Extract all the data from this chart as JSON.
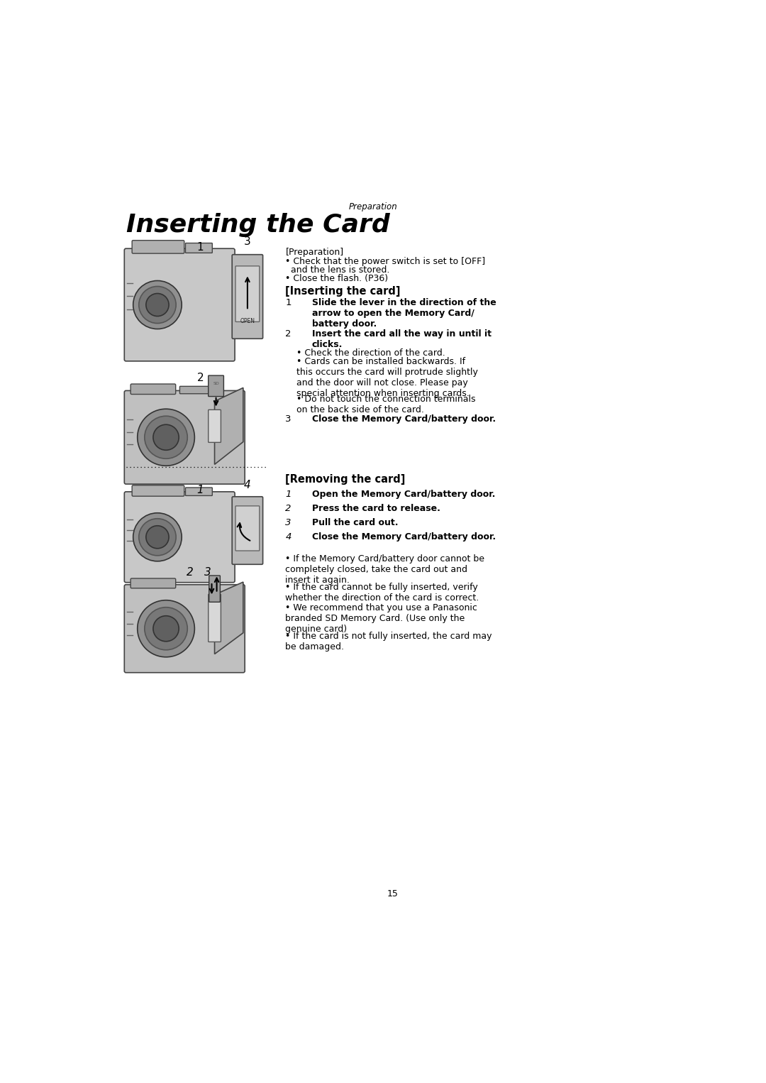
{
  "page_bg": "#ffffff",
  "page_number": "15",
  "section_label": "Preparation",
  "title": "Inserting the Card",
  "prep_header": "[Preparation]",
  "prep_bullet1": "Check that the power switch is set to [OFF]",
  "prep_bullet1b": "  and the lens is stored.",
  "prep_bullet2": "Close the flash. (P36)",
  "inserting_header": "[Inserting the card]",
  "step1_num": "1",
  "step1_text": "Slide the lever in the direction of the\narrow to open the Memory Card/\nbattery door.",
  "step2_num": "2",
  "step2_text": "Insert the card all the way in until it\nclicks.",
  "step2_b1": "Check the direction of the card.",
  "step2_b2": "Cards can be installed backwards. If\nthis occurs the card will protrude slightly\nand the door will not close. Please pay\nspecial attention when inserting cards.",
  "step2_b3": "Do not touch the connection terminals\non the back side of the card.",
  "step3_num": "3",
  "step3_text": "Close the Memory Card/battery door.",
  "removing_header": "[Removing the card]",
  "rstep1_num": "1",
  "rstep1_text": "Open the Memory Card/battery door.",
  "rstep2_num": "2",
  "rstep2_text": "Press the card to release.",
  "rstep3_num": "3",
  "rstep3_text": "Pull the card out.",
  "rstep4_num": "4",
  "rstep4_text": "Close the Memory Card/battery door.",
  "rbullet1": "If the Memory Card/battery door cannot be\ncompletely closed, take the card out and\ninsert it again.",
  "rbullet2": "If the card cannot be fully inserted, verify\nwhether the direction of the card is correct.",
  "rbullet3": "We recommend that you use a Panasonic\nbranded SD Memory Card. (Use only the\ngenuine card)",
  "rbullet4": "If the card is not fully inserted, the card may\nbe damaged.",
  "body_fs": 9.0,
  "header_fs": 10.5,
  "title_fs": 26,
  "section_fs": 8.5,
  "step_num_fs": 9.5,
  "page_num_fs": 9.0
}
